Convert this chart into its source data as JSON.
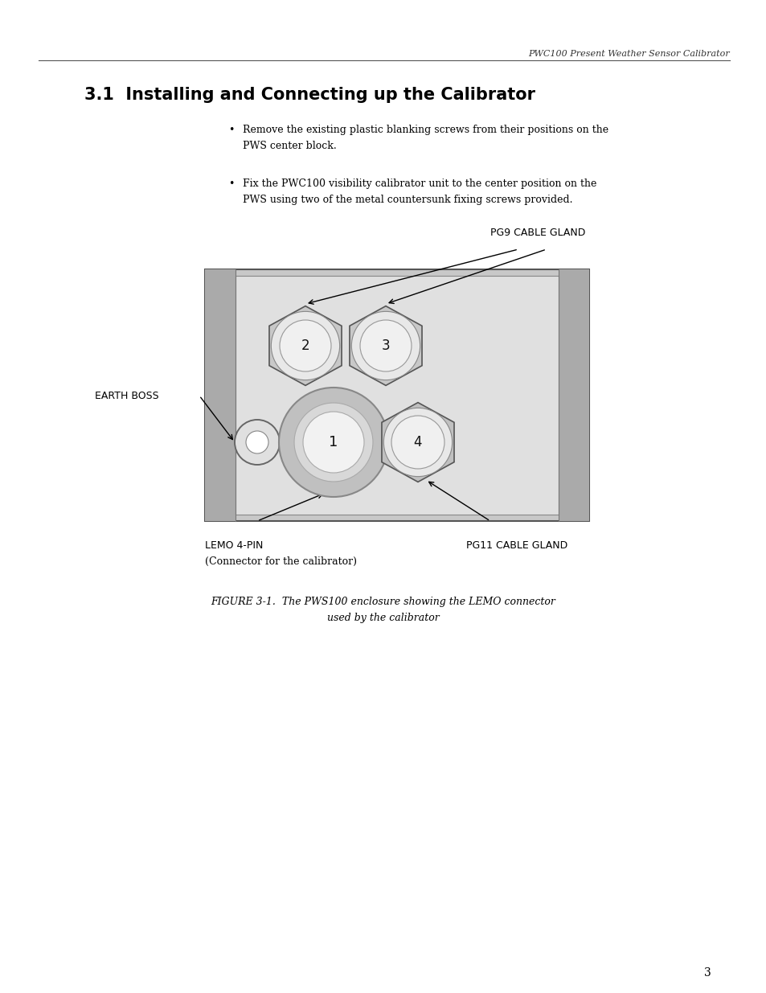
{
  "page_header": "PWC100 Present Weather Sensor Calibrator",
  "section_title": "3.1  Installing and Connecting up the Calibrator",
  "b1_line1": "Remove the existing plastic blanking screws from their positions on the",
  "b1_line2": "PWS center block.",
  "b2_line1": "Fix the PWC100 visibility calibrator unit to the center position on the",
  "b2_line2": "PWS using two of the metal countersunk fixing screws provided.",
  "fig_caption_line1": "FIGURE 3-1.  The PWS100 enclosure showing the LEMO connector",
  "fig_caption_line2": "used by the calibrator",
  "label_pg9": "PG9 CABLE GLAND",
  "label_earth": "EARTH BOSS",
  "label_lemo": "LEMO 4-PIN",
  "label_lemo_sub": "(Connector for the calibrator)",
  "label_pg11": "PG11 CABLE GLAND",
  "page_number": "3",
  "bg_color": "#ffffff",
  "text_color": "#000000"
}
